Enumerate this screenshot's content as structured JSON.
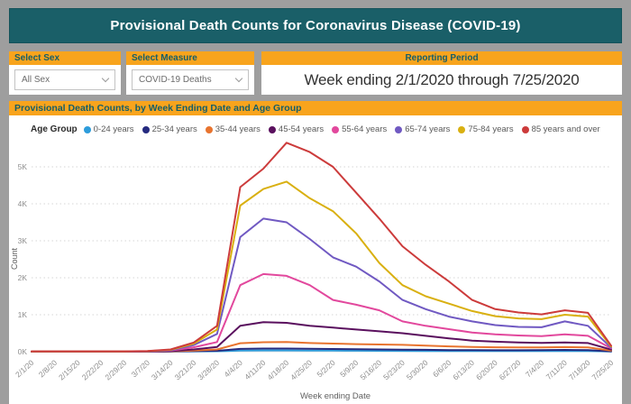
{
  "header": {
    "title": "Provisional Death Counts for Coronavirus Disease (COVID-19)"
  },
  "filters": {
    "sex": {
      "label": "Select Sex",
      "value": "All Sex"
    },
    "measure": {
      "label": "Select Measure",
      "value": "COVID-19 Deaths"
    },
    "reporting_period": {
      "label": "Reporting Period",
      "value": "Week ending 2/1/2020 through 7/25/2020"
    }
  },
  "chart": {
    "title": "Provisional Death Counts, by Week Ending Date and Age Group",
    "legend_title": "Age Group"
  },
  "colors": {
    "teal": "#1a5f68",
    "orange": "#f8a41d",
    "grid": "#d6d6d6",
    "axis_text": "#8f8f8f",
    "axis_title_text": "#5f5f5f"
  },
  "chart_data": {
    "type": "line",
    "title": "Provisional Death Counts, by Week Ending Date and Age Group",
    "xlabel": "Week ending Date",
    "ylabel": "Count",
    "ylim": [
      0,
      5800
    ],
    "yticks": [
      "0K",
      "1K",
      "2K",
      "3K",
      "4K",
      "5K"
    ],
    "grid": "dotted-horizontal",
    "legend_position": "top",
    "categories": [
      "2/1/20",
      "2/8/20",
      "2/15/20",
      "2/22/20",
      "2/29/20",
      "3/7/20",
      "3/14/20",
      "3/21/20",
      "3/28/20",
      "4/4/20",
      "4/11/20",
      "4/18/20",
      "4/25/20",
      "5/2/20",
      "5/9/20",
      "5/16/20",
      "5/23/20",
      "5/30/20",
      "6/6/20",
      "6/13/20",
      "6/20/20",
      "6/27/20",
      "7/4/20",
      "7/11/20",
      "7/18/20",
      "7/25/20"
    ],
    "series": [
      {
        "name": "0-24 years",
        "color": "#2d9cdb",
        "values": [
          0,
          0,
          0,
          0,
          0,
          0,
          5,
          10,
          12,
          30,
          35,
          35,
          30,
          30,
          28,
          25,
          22,
          20,
          20,
          18,
          18,
          18,
          18,
          20,
          18,
          5
        ]
      },
      {
        "name": "25-34 years",
        "color": "#252a7f",
        "values": [
          0,
          0,
          0,
          0,
          0,
          0,
          5,
          15,
          25,
          75,
          85,
          85,
          80,
          72,
          65,
          60,
          55,
          50,
          45,
          42,
          40,
          40,
          42,
          48,
          42,
          10
        ]
      },
      {
        "name": "35-44 years",
        "color": "#e8742f",
        "values": [
          0,
          0,
          0,
          0,
          0,
          5,
          10,
          30,
          60,
          230,
          255,
          260,
          235,
          220,
          205,
          195,
          185,
          165,
          145,
          130,
          120,
          115,
          115,
          125,
          115,
          30
        ]
      },
      {
        "name": "45-54 years",
        "color": "#5a105e",
        "values": [
          0,
          0,
          0,
          0,
          0,
          5,
          15,
          60,
          130,
          700,
          800,
          780,
          700,
          650,
          600,
          550,
          500,
          430,
          360,
          300,
          270,
          250,
          240,
          250,
          235,
          55
        ]
      },
      {
        "name": "55-64 years",
        "color": "#e2489d",
        "values": [
          5,
          5,
          5,
          5,
          5,
          10,
          30,
          120,
          260,
          1800,
          2100,
          2050,
          1800,
          1400,
          1270,
          1120,
          820,
          700,
          610,
          520,
          470,
          440,
          420,
          470,
          430,
          90
        ]
      },
      {
        "name": "65-74 years",
        "color": "#7059c2",
        "values": [
          5,
          5,
          5,
          5,
          5,
          10,
          40,
          180,
          480,
          3100,
          3600,
          3500,
          3050,
          2550,
          2300,
          1900,
          1400,
          1150,
          950,
          820,
          720,
          670,
          660,
          820,
          700,
          110
        ]
      },
      {
        "name": "75-84 years",
        "color": "#d9b011",
        "values": [
          5,
          5,
          5,
          5,
          5,
          15,
          50,
          220,
          600,
          3950,
          4400,
          4600,
          4150,
          3800,
          3200,
          2400,
          1800,
          1500,
          1300,
          1100,
          960,
          900,
          880,
          1000,
          950,
          140
        ]
      },
      {
        "name": "85 years and over",
        "color": "#cc3b3b",
        "values": [
          10,
          10,
          10,
          10,
          10,
          20,
          60,
          250,
          700,
          4450,
          4950,
          5650,
          5400,
          5000,
          4300,
          3600,
          2850,
          2350,
          1900,
          1400,
          1150,
          1060,
          1010,
          1120,
          1050,
          160
        ]
      }
    ]
  }
}
